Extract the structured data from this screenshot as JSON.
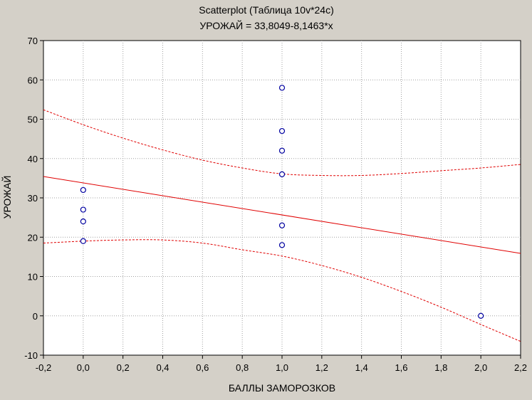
{
  "chart_data": {
    "type": "scatter",
    "title": "Scatterplot (Таблица 10v*24c)",
    "subtitle": "УРОЖАЙ = 33,8049-8,1463*x",
    "xlabel": "БАЛЛЫ ЗАМОРОЗКОВ",
    "ylabel": "УРОЖАЙ",
    "xlim": [
      -0.2,
      2.2
    ],
    "ylim": [
      -10,
      70
    ],
    "grid": true,
    "x_ticks": [
      -0.2,
      0.0,
      0.2,
      0.4,
      0.6,
      0.8,
      1.0,
      1.2,
      1.4,
      1.6,
      1.8,
      2.0,
      2.2
    ],
    "x_tick_labels": [
      "-0,2",
      "0,0",
      "0,2",
      "0,4",
      "0,6",
      "0,8",
      "1,0",
      "1,2",
      "1,4",
      "1,6",
      "1,8",
      "2,0",
      "2,2"
    ],
    "y_ticks": [
      -10,
      0,
      10,
      20,
      30,
      40,
      50,
      60,
      70
    ],
    "y_tick_labels": [
      "-10",
      "0",
      "10",
      "20",
      "30",
      "40",
      "50",
      "60",
      "70"
    ],
    "points": [
      {
        "x": 0,
        "y": 32
      },
      {
        "x": 0,
        "y": 27
      },
      {
        "x": 0,
        "y": 24
      },
      {
        "x": 0,
        "y": 19
      },
      {
        "x": 1,
        "y": 58
      },
      {
        "x": 1,
        "y": 47
      },
      {
        "x": 1,
        "y": 42
      },
      {
        "x": 1,
        "y": 36
      },
      {
        "x": 1,
        "y": 23
      },
      {
        "x": 1,
        "y": 18
      },
      {
        "x": 2,
        "y": 0
      }
    ],
    "regression": {
      "intercept": 33.8049,
      "slope": -8.1463
    },
    "confidence_upper": [
      {
        "x": -0.2,
        "y": 52.4
      },
      {
        "x": 0.0,
        "y": 48.6
      },
      {
        "x": 0.2,
        "y": 45.2
      },
      {
        "x": 0.4,
        "y": 42.2
      },
      {
        "x": 0.6,
        "y": 39.6
      },
      {
        "x": 0.8,
        "y": 37.6
      },
      {
        "x": 1.0,
        "y": 36.1
      },
      {
        "x": 1.2,
        "y": 35.7
      },
      {
        "x": 1.4,
        "y": 35.7
      },
      {
        "x": 1.6,
        "y": 36.2
      },
      {
        "x": 1.8,
        "y": 36.9
      },
      {
        "x": 2.0,
        "y": 37.6
      },
      {
        "x": 2.2,
        "y": 38.5
      }
    ],
    "confidence_lower": [
      {
        "x": -0.2,
        "y": 18.5
      },
      {
        "x": 0.0,
        "y": 19.0
      },
      {
        "x": 0.2,
        "y": 19.3
      },
      {
        "x": 0.4,
        "y": 19.3
      },
      {
        "x": 0.6,
        "y": 18.5
      },
      {
        "x": 0.8,
        "y": 16.8
      },
      {
        "x": 1.0,
        "y": 15.2
      },
      {
        "x": 1.2,
        "y": 12.8
      },
      {
        "x": 1.4,
        "y": 9.8
      },
      {
        "x": 1.6,
        "y": 6.2
      },
      {
        "x": 1.8,
        "y": 2.2
      },
      {
        "x": 2.0,
        "y": -2.2
      },
      {
        "x": 2.2,
        "y": -6.5
      }
    ],
    "colors": {
      "background": "#d4d0c8",
      "plot_background": "#ffffff",
      "grid": "#a0a0a0",
      "points": "#0000a0",
      "regression_line": "#e00000",
      "confidence_band": "#e00000"
    }
  }
}
